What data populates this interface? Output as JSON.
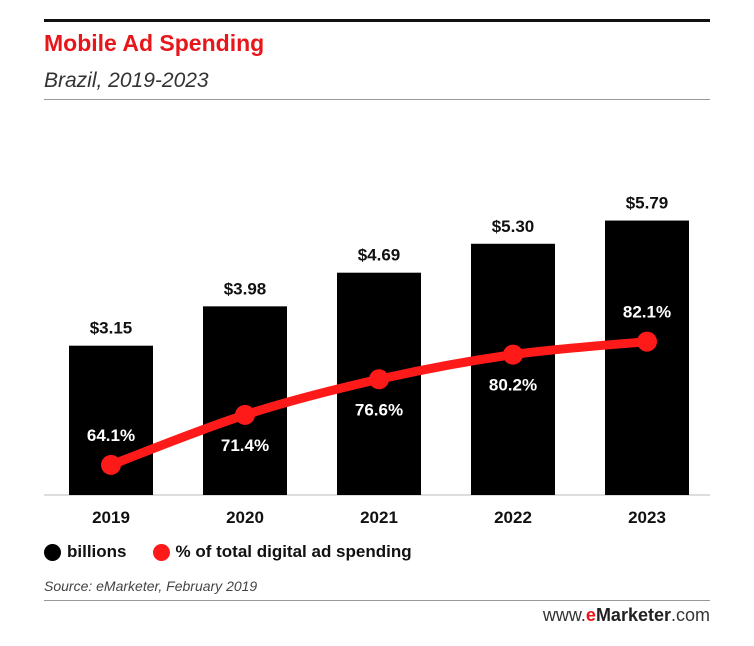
{
  "header": {
    "title": "Mobile Ad Spending",
    "subtitle": "Brazil, 2019-2023"
  },
  "legend": {
    "bars_label": "billions",
    "line_label": "% of total digital ad spending"
  },
  "footer": {
    "source": "Source: eMarketer, February 2019",
    "brand_prefix": "www.",
    "brand_e": "e",
    "brand_name": "Marketer",
    "brand_suffix": ".com"
  },
  "colors": {
    "bar": "#000000",
    "line": "#ff1a1a",
    "title": "#e8161b"
  },
  "chart_data": {
    "type": "bar",
    "categories": [
      "2019",
      "2020",
      "2021",
      "2022",
      "2023"
    ],
    "series": [
      {
        "name": "billions",
        "type": "bar",
        "values": [
          3.15,
          3.98,
          4.69,
          5.3,
          5.79
        ],
        "labels": [
          "$3.15",
          "$3.98",
          "$4.69",
          "$5.30",
          "$5.79"
        ]
      },
      {
        "name": "% of total digital ad spending",
        "type": "line",
        "values": [
          64.1,
          71.4,
          76.6,
          80.2,
          82.1
        ],
        "labels": [
          "64.1%",
          "71.4%",
          "76.6%",
          "80.2%",
          "82.1%"
        ]
      }
    ],
    "title": "Mobile Ad Spending",
    "subtitle": "Brazil, 2019-2023",
    "grid": false,
    "legend_position": "bottom-left"
  }
}
